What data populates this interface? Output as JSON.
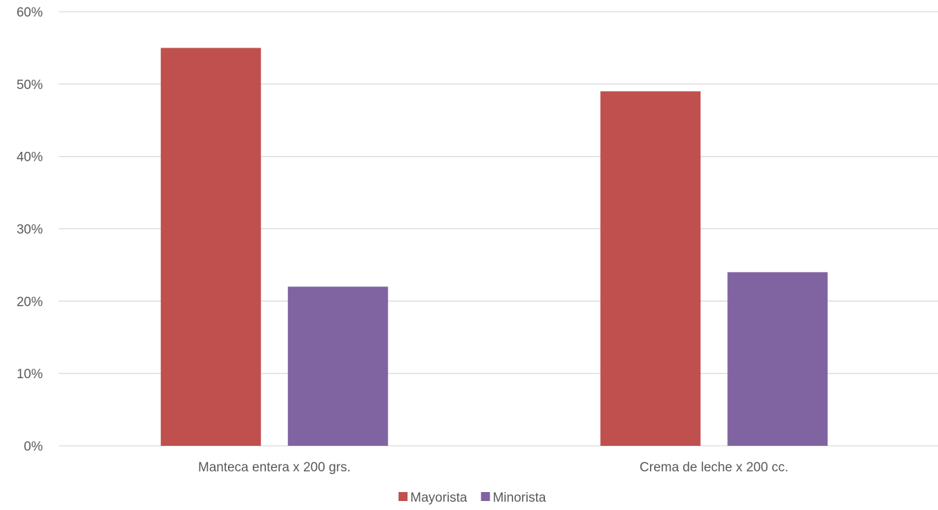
{
  "chart_data": {
    "type": "bar",
    "categories": [
      "Manteca entera x 200 grs.",
      "Crema de leche x 200 cc."
    ],
    "series": [
      {
        "name": "Mayorista",
        "values": [
          55,
          49
        ],
        "color": "#c0504d"
      },
      {
        "name": "Minorista",
        "values": [
          22,
          24
        ],
        "color": "#8064a2"
      }
    ],
    "ylim": [
      0,
      60
    ],
    "yticks": [
      0,
      10,
      20,
      30,
      40,
      50,
      60
    ],
    "ytick_suffix": "%",
    "grid": true,
    "legend_position": "bottom"
  }
}
